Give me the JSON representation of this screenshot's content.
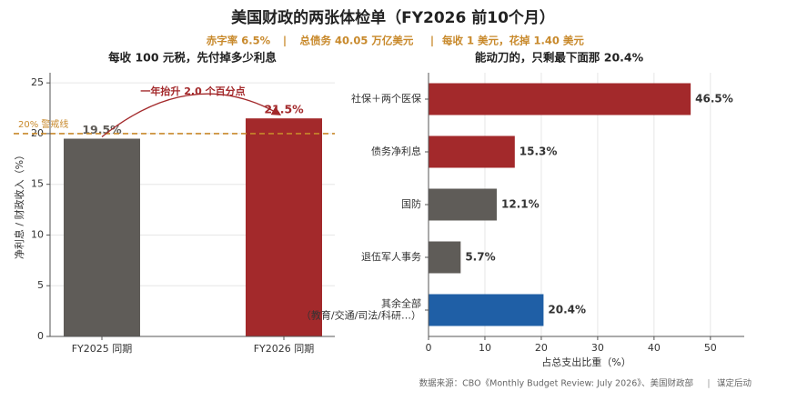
{
  "title": "美国财政的两张体检单（FY2026 前10个月）",
  "subtitle": [
    "赤字率 6.5%",
    "总债务 40.05 万亿美元",
    "每收 1 美元，花掉 1.40 美元"
  ],
  "footer": [
    "数据来源：CBO《Monthly Budget Review: July 2026》、美国财政部",
    "谋定后动"
  ],
  "chart_data": [
    {
      "type": "bar",
      "title": "每收 100 元税，先付掉多少利息",
      "categories": [
        "FY2025 同期",
        "FY2026 同期"
      ],
      "values": [
        19.5,
        21.5
      ],
      "value_labels": [
        "19.5%",
        "21.5%"
      ],
      "colors": [
        "#5f5c58",
        "#a3292b"
      ],
      "ylabel": "净利息 / 财政收入（%）",
      "ylim": [
        0,
        26
      ],
      "yticks": [
        0,
        5,
        10,
        15,
        20,
        25
      ],
      "grid": true,
      "reference_line": {
        "value": 20,
        "label": "20% 警戒线",
        "color": "#c8892b"
      },
      "annotation": {
        "text": "一年抬升 2.0 个百分点",
        "color": "#a3292b"
      }
    },
    {
      "type": "barh",
      "title": "能动刀的，只剩最下面那 20.4%",
      "categories": [
        "社保＋两个医保",
        "债务净利息",
        "国防",
        "退伍军人事务",
        "其余全部\n（教育/交通/司法/科研…）"
      ],
      "values": [
        46.5,
        15.3,
        12.1,
        5.7,
        20.4
      ],
      "value_labels": [
        "46.5%",
        "15.3%",
        "12.1%",
        "5.7%",
        "20.4%"
      ],
      "colors": [
        "#a3292b",
        "#a3292b",
        "#5f5c58",
        "#5f5c58",
        "#1f5fa6"
      ],
      "xlabel": "占总支出比重（%）",
      "xlim": [
        0,
        56
      ],
      "xticks": [
        0,
        10,
        20,
        30,
        40,
        50
      ],
      "grid": true
    }
  ]
}
